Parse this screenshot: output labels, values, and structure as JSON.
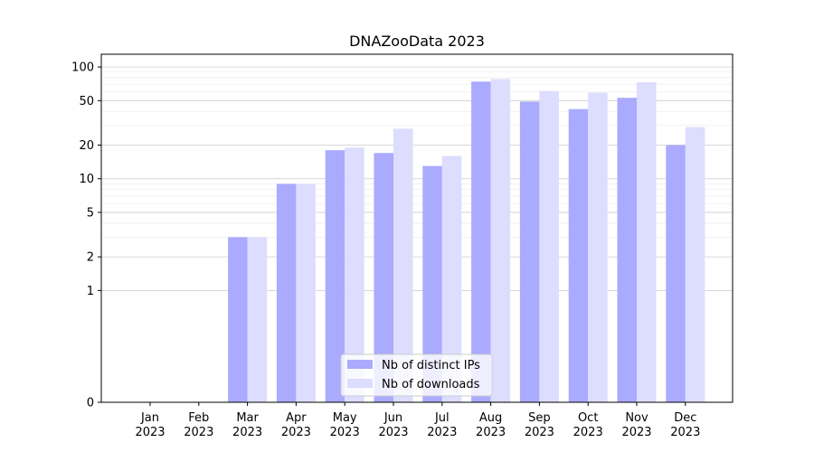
{
  "chart_data": {
    "type": "bar",
    "title": "DNAZooData 2023",
    "xlabel": "",
    "ylabel": "",
    "y_scale": "symlog",
    "ylim": [
      0,
      130
    ],
    "grid": "horizontal, major and minor",
    "legend": "bottom-center",
    "categories": [
      [
        "Jan",
        "2023"
      ],
      [
        "Feb",
        "2023"
      ],
      [
        "Mar",
        "2023"
      ],
      [
        "Apr",
        "2023"
      ],
      [
        "May",
        "2023"
      ],
      [
        "Jun",
        "2023"
      ],
      [
        "Jul",
        "2023"
      ],
      [
        "Aug",
        "2023"
      ],
      [
        "Sep",
        "2023"
      ],
      [
        "Oct",
        "2023"
      ],
      [
        "Nov",
        "2023"
      ],
      [
        "Dec",
        "2023"
      ]
    ],
    "y_ticks": [
      0,
      1,
      2,
      5,
      10,
      20,
      50,
      100
    ],
    "series": [
      {
        "name": "Nb of distinct IPs",
        "color": "#aaaaff",
        "values": [
          0,
          0,
          3,
          9,
          18,
          17,
          13,
          74,
          49,
          42,
          53,
          20
        ]
      },
      {
        "name": "Nb of downloads",
        "color": "#ddddff",
        "values": [
          0,
          0,
          3,
          9,
          19,
          28,
          16,
          78,
          61,
          59,
          73,
          29
        ]
      }
    ]
  }
}
